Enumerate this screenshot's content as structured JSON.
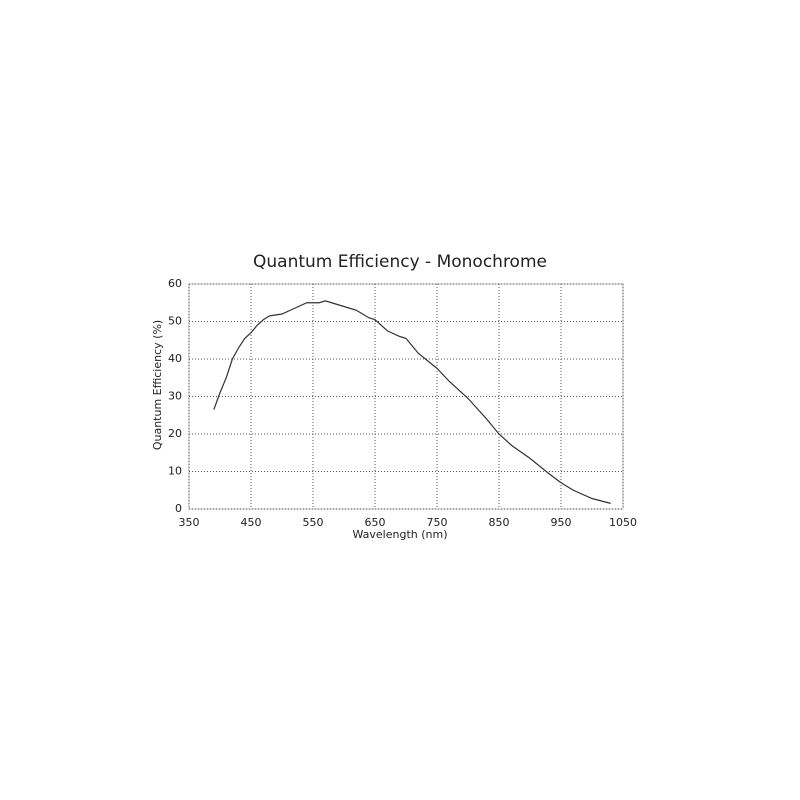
{
  "chart_data": {
    "type": "line",
    "title": "Quantum Efficiency - Monochrome",
    "x_label": "Wavelength (nm)",
    "y_label": "Quantum Efficiency (%)",
    "x": [
      390,
      400,
      410,
      420,
      430,
      440,
      450,
      460,
      470,
      480,
      500,
      520,
      540,
      560,
      570,
      580,
      600,
      620,
      640,
      650,
      670,
      690,
      700,
      720,
      750,
      770,
      800,
      830,
      850,
      870,
      900,
      930,
      950,
      970,
      1000,
      1030
    ],
    "series": [
      {
        "name": "Monochrome",
        "color": "#333333",
        "values": [
          26.5,
          31,
          35,
          40,
          43,
          45.5,
          47,
          49,
          50.5,
          51.5,
          52,
          53.5,
          55,
          55,
          55.5,
          55,
          54,
          53,
          51,
          50.5,
          47.5,
          46,
          45.5,
          41.5,
          37.5,
          34,
          29.5,
          24,
          20,
          17,
          13.5,
          9.5,
          7,
          5,
          2.8,
          1.5
        ]
      }
    ],
    "xlim": [
      350,
      1050
    ],
    "xticks": [
      350,
      450,
      550,
      650,
      750,
      850,
      950,
      1050
    ],
    "ylim": [
      0,
      60
    ],
    "yticks": [
      0,
      10,
      20,
      30,
      40,
      50,
      60
    ],
    "grid": true
  }
}
